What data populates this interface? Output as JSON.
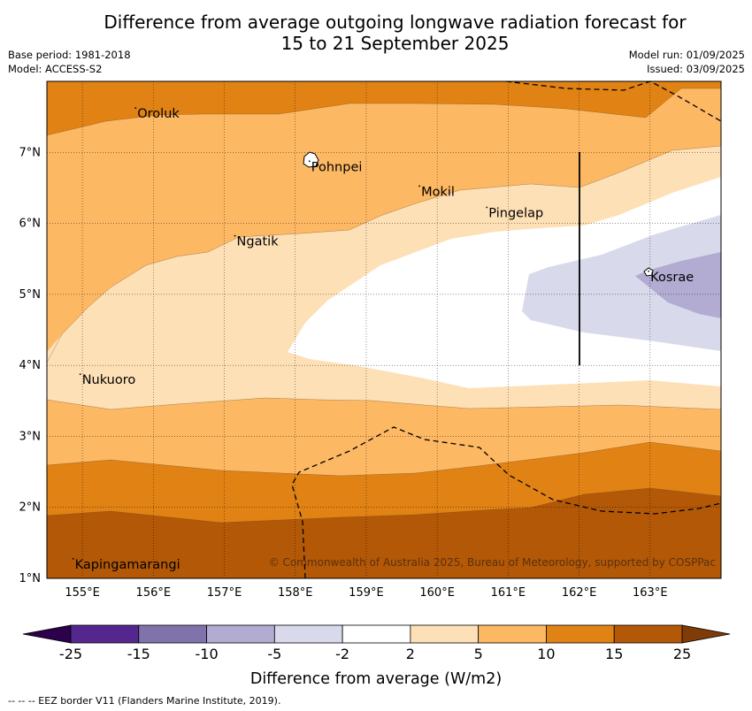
{
  "title": {
    "line1": "Difference from average outgoing longwave radiation forecast for",
    "line2": "15 to 21 September 2025"
  },
  "meta": {
    "base_period": "Base period: 1981-2018",
    "model": "Model: ACCESS-S2",
    "model_run": "Model run: 01/09/2025",
    "issued": "Issued: 03/09/2025"
  },
  "map": {
    "lon_range": [
      154.5,
      164.0
    ],
    "lat_range": [
      1.0,
      8.0
    ],
    "lon_ticks": [
      "155°E",
      "156°E",
      "157°E",
      "158°E",
      "159°E",
      "160°E",
      "161°E",
      "162°E",
      "163°E"
    ],
    "lat_ticks": [
      "1°N",
      "2°N",
      "3°N",
      "4°N",
      "5°N",
      "6°N",
      "7°N"
    ],
    "places": [
      {
        "name": "Oroluk",
        "lon": 155.75,
        "lat": 7.6
      },
      {
        "name": "Pohnpei",
        "lon": 158.2,
        "lat": 6.85
      },
      {
        "name": "Mokil",
        "lon": 159.75,
        "lat": 6.5
      },
      {
        "name": "Pingelap",
        "lon": 160.7,
        "lat": 6.2
      },
      {
        "name": "Ngatik",
        "lon": 157.15,
        "lat": 5.8
      },
      {
        "name": "Kosrae",
        "lon": 162.98,
        "lat": 5.3
      },
      {
        "name": "Nukuoro",
        "lon": 154.97,
        "lat": 3.85
      },
      {
        "name": "Kapingamarangi",
        "lon": 154.87,
        "lat": 1.25
      }
    ],
    "copyright": "© Commonwealth of Australia 2025, Bureau of Meteorology, supported by COSPPac",
    "colors": {
      "neg_25_15": "#54278f",
      "neg_15_10": "#8073ac",
      "neg_10_5": "#b2abd2",
      "neg_5_2": "#d8daeb",
      "neutral": "#ffffff",
      "pos_2_5": "#fee0b6",
      "pos_5_10": "#fdb863",
      "pos_10_15": "#e08214",
      "pos_15_25": "#b35806",
      "below_min": "#2d004b",
      "above_max": "#7f3b08"
    }
  },
  "colorbar": {
    "ticks": [
      "-25",
      "-15",
      "-10",
      "-5",
      "-2",
      "2",
      "5",
      "10",
      "15",
      "25"
    ],
    "colors": [
      "#54278f",
      "#8073ac",
      "#b2abd2",
      "#d8daeb",
      "#ffffff",
      "#fee0b6",
      "#fdb863",
      "#e08214",
      "#b35806"
    ],
    "under_color": "#2d004b",
    "over_color": "#7f3b08",
    "label": "Difference from average (W/m2)"
  },
  "footnote": "--  --  -- EEZ border V11 (Flanders Marine Institute, 2019)."
}
